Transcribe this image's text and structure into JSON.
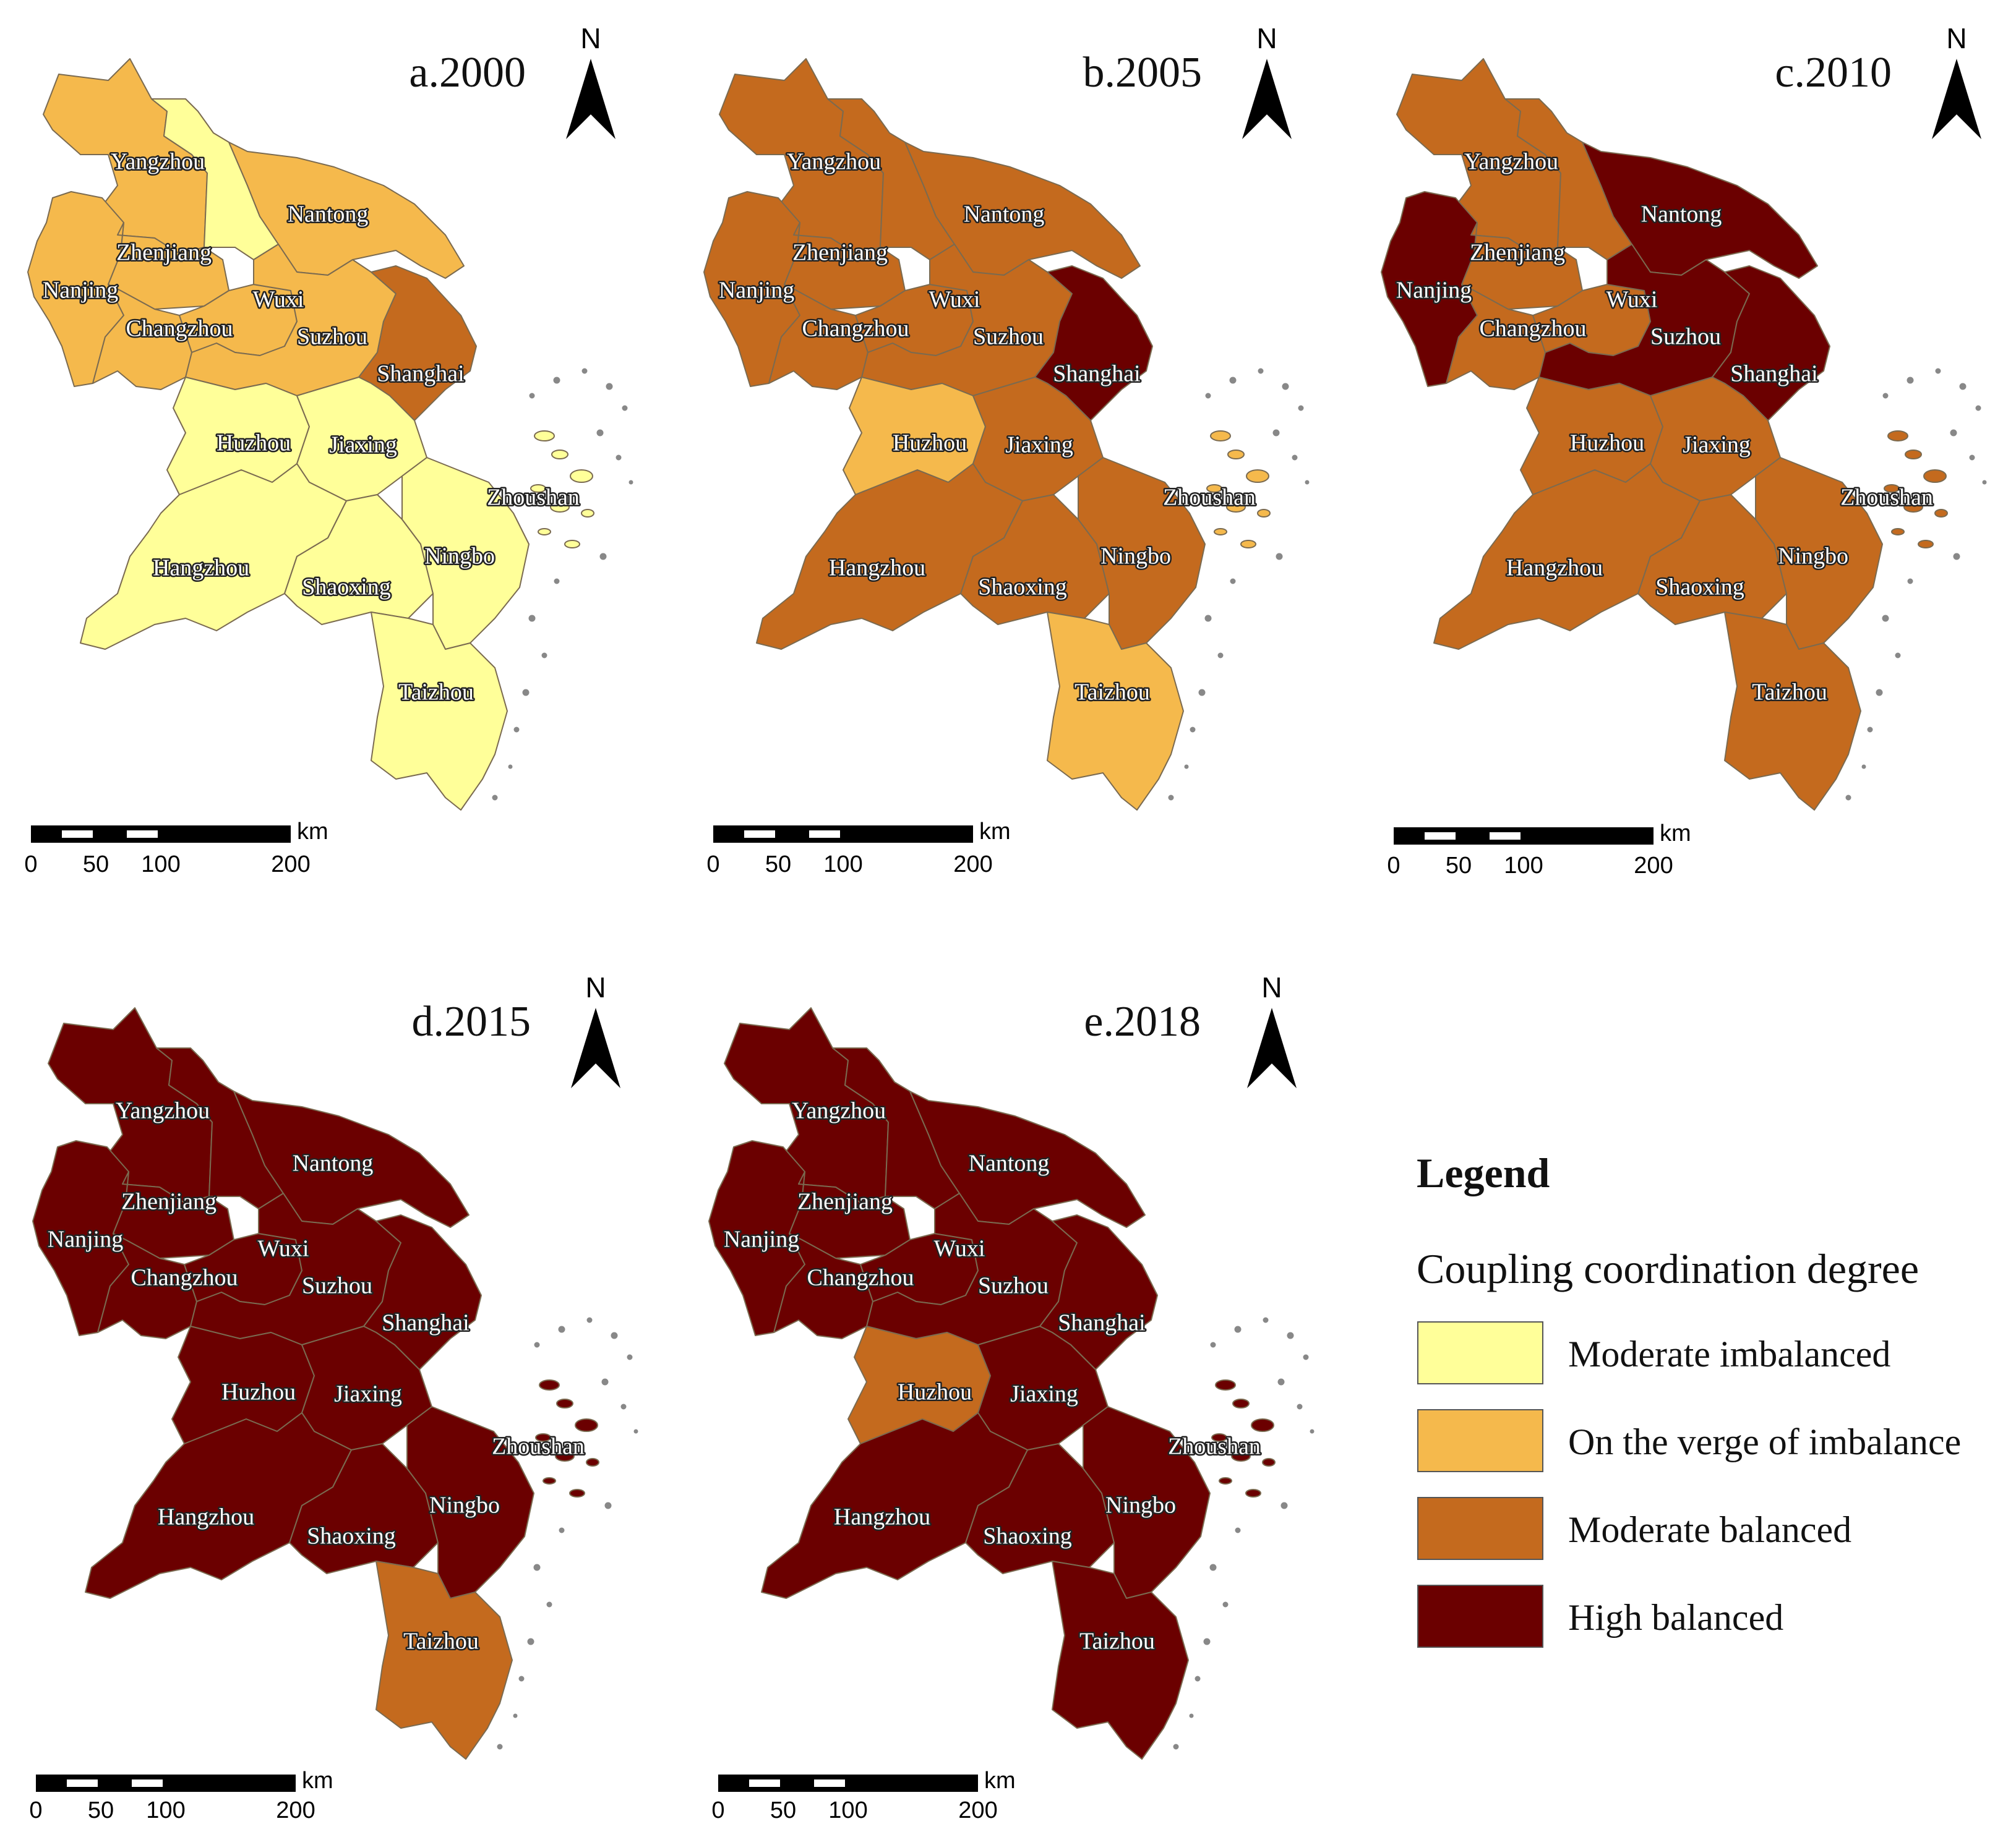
{
  "legend": {
    "heading": "Legend",
    "subtitle": "Coupling coordination degree",
    "classes": [
      {
        "key": "mi",
        "label": "Moderate imbalanced",
        "color": "#FFFF99"
      },
      {
        "key": "vi",
        "label": "On the verge of imbalance",
        "color": "#F5B94C"
      },
      {
        "key": "mb",
        "label": "Moderate balanced",
        "color": "#C46A1E"
      },
      {
        "key": "hb",
        "label": "High balanced",
        "color": "#6B0000"
      }
    ]
  },
  "north_label": "N",
  "scale_bar": {
    "unit": "km",
    "ticks": [
      "0",
      "50",
      "100",
      "200"
    ]
  },
  "maps": [
    {
      "title": "a.2000",
      "classes": {
        "Yangzhou": "vi",
        "Taizhou_JS": "mi",
        "Nantong": "vi",
        "Zhenjiang": "vi",
        "Nanjing": "vi",
        "Changzhou": "vi",
        "Wuxi": "vi",
        "Suzhou": "vi",
        "Shanghai": "mb",
        "Huzhou": "mi",
        "Jiaxing": "mi",
        "Hangzhou": "mi",
        "Shaoxing": "mi",
        "Ningbo": "mi",
        "Zhoushan": "mi",
        "Taizhou": "mi"
      }
    },
    {
      "title": "b.2005",
      "classes": {
        "Yangzhou": "mb",
        "Taizhou_JS": "mb",
        "Nantong": "mb",
        "Zhenjiang": "mb",
        "Nanjing": "mb",
        "Changzhou": "mb",
        "Wuxi": "mb",
        "Suzhou": "mb",
        "Shanghai": "hb",
        "Huzhou": "vi",
        "Jiaxing": "mb",
        "Hangzhou": "mb",
        "Shaoxing": "mb",
        "Ningbo": "mb",
        "Zhoushan": "vi",
        "Taizhou": "vi"
      }
    },
    {
      "title": "c.2010",
      "classes": {
        "Yangzhou": "mb",
        "Taizhou_JS": "mb",
        "Nantong": "hb",
        "Zhenjiang": "mb",
        "Nanjing": "hb",
        "Changzhou": "mb",
        "Wuxi": "mb",
        "Suzhou": "hb",
        "Shanghai": "hb",
        "Huzhou": "mb",
        "Jiaxing": "mb",
        "Hangzhou": "mb",
        "Shaoxing": "mb",
        "Ningbo": "mb",
        "Zhoushan": "mb",
        "Taizhou": "mb"
      }
    },
    {
      "title": "d.2015",
      "classes": {
        "Yangzhou": "hb",
        "Taizhou_JS": "hb",
        "Nantong": "hb",
        "Zhenjiang": "hb",
        "Nanjing": "hb",
        "Changzhou": "hb",
        "Wuxi": "hb",
        "Suzhou": "hb",
        "Shanghai": "hb",
        "Huzhou": "hb",
        "Jiaxing": "hb",
        "Hangzhou": "hb",
        "Shaoxing": "hb",
        "Ningbo": "hb",
        "Zhoushan": "hb",
        "Taizhou": "mb"
      }
    },
    {
      "title": "e.2018",
      "classes": {
        "Yangzhou": "hb",
        "Taizhou_JS": "hb",
        "Nantong": "hb",
        "Zhenjiang": "hb",
        "Nanjing": "hb",
        "Changzhou": "hb",
        "Wuxi": "hb",
        "Suzhou": "hb",
        "Shanghai": "hb",
        "Huzhou": "mb",
        "Jiaxing": "hb",
        "Hangzhou": "hb",
        "Shaoxing": "hb",
        "Ningbo": "hb",
        "Zhoushan": "hb",
        "Taizhou": "hb"
      }
    }
  ],
  "city_labels": {
    "Yangzhou": "Yangzhou",
    "Nantong": "Nantong",
    "Zhenjiang": "Zhenjiang",
    "Nanjing": "Nanjing",
    "Wuxi": "Wuxi",
    "Changzhou": "Changzhou",
    "Suzhou": "Suzhou",
    "Shanghai": "Shanghai",
    "Huzhou": "Huzhou",
    "Jiaxing": "Jiaxing",
    "Zhoushan": "Zhoushan",
    "Hangzhou": "Hangzhou",
    "Ningbo": "Ningbo",
    "Shaoxing": "Shaoxing",
    "Taizhou": "Taizhou"
  }
}
